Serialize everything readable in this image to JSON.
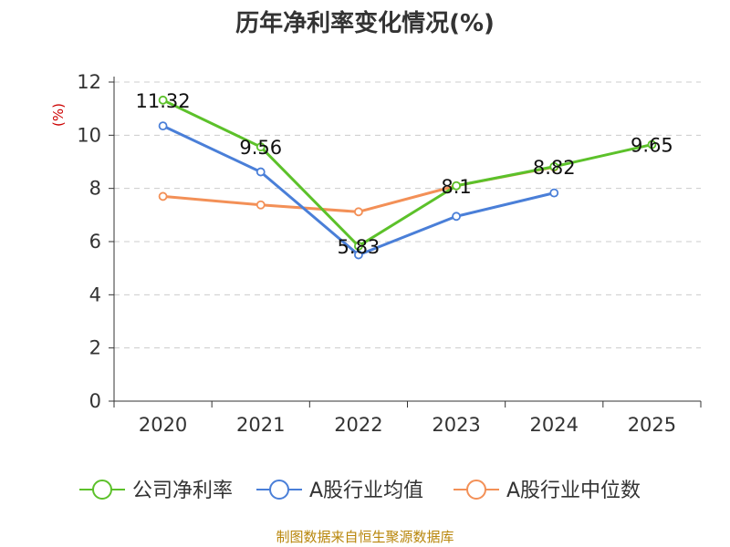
{
  "chart_data": {
    "type": "line",
    "title": "历年净利率变化情况(%)",
    "xlabel": "",
    "ylabel": "(%)",
    "categories": [
      "2020",
      "2021",
      "2022",
      "2023",
      "2024",
      "2025"
    ],
    "ylim": [
      0,
      12
    ],
    "yticks": [
      0,
      2,
      4,
      6,
      8,
      10,
      12
    ],
    "grid": true,
    "legend_position": "bottom",
    "series": [
      {
        "name": "公司净利率",
        "color": "#5cc12a",
        "values": [
          11.32,
          9.56,
          5.83,
          8.1,
          8.82,
          9.65
        ],
        "labels": [
          "11.32",
          "9.56",
          "5.83",
          "8.1",
          "8.82",
          "9.65"
        ]
      },
      {
        "name": "A股行业均值",
        "color": "#4a7fd8",
        "values": [
          10.35,
          8.62,
          5.5,
          6.95,
          7.83,
          null
        ]
      },
      {
        "name": "A股行业中位数",
        "color": "#f39057",
        "values": [
          7.7,
          7.38,
          7.12,
          8.1,
          8.8,
          null
        ]
      }
    ],
    "source": "制图数据来自恒生聚源数据库"
  }
}
